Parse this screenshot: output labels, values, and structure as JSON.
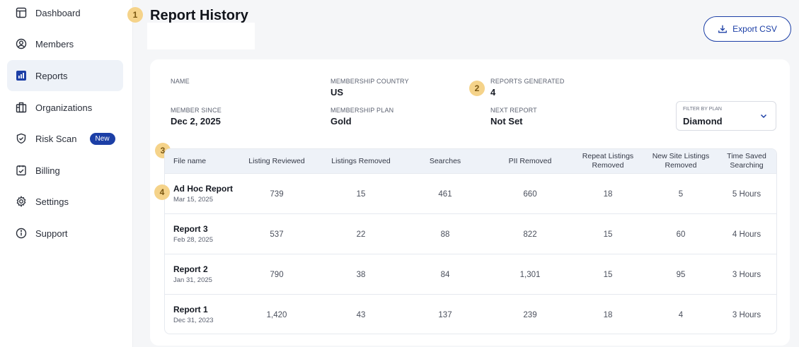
{
  "sidebar": {
    "items": [
      {
        "label": "Dashboard",
        "icon": "dashboard-icon"
      },
      {
        "label": "Members",
        "icon": "user-circle-icon"
      },
      {
        "label": "Reports",
        "icon": "bar-chart-icon"
      },
      {
        "label": "Organizations",
        "icon": "building-icon"
      },
      {
        "label": "Risk Scan",
        "icon": "shield-check-icon",
        "badge": "New"
      },
      {
        "label": "Billing",
        "icon": "clipboard-check-icon"
      },
      {
        "label": "Settings",
        "icon": "gear-icon"
      },
      {
        "label": "Support",
        "icon": "info-icon"
      }
    ],
    "active": "Reports"
  },
  "header": {
    "title": "Report History",
    "export_label": "Export CSV"
  },
  "markers": [
    "1",
    "2",
    "3",
    "4"
  ],
  "member": {
    "name_label": "NAME",
    "country_label": "MEMBERSHIP COUNTRY",
    "country_value": "US",
    "reports_label": "REPORTS GENERATED",
    "reports_value": "4",
    "since_label": "MEMBER SINCE",
    "since_value": "Dec 2, 2025",
    "plan_label": "MEMBERSHIP PLAN",
    "plan_value": "Gold",
    "next_label": "NEXT REPORT",
    "next_value": "Not Set"
  },
  "filter": {
    "label": "FILTER BY PLAN",
    "value": "Diamond"
  },
  "table": {
    "headers": [
      "File name",
      "Listing Reviewed",
      "Listings Removed",
      "Searches",
      "PII Removed",
      "Repeat Listings Removed",
      "New Site Listings Removed",
      "Time Saved Searching"
    ],
    "rows": [
      {
        "name": "Ad Hoc Report",
        "date": "Mar 15, 2025",
        "reviewed": "739",
        "removed": "15",
        "searches": "461",
        "pii": "660",
        "repeat": "18",
        "new_site": "5",
        "time": "5 Hours"
      },
      {
        "name": "Report 3",
        "date": "Feb 28, 2025",
        "reviewed": "537",
        "removed": "22",
        "searches": "88",
        "pii": "822",
        "repeat": "15",
        "new_site": "60",
        "time": "4 Hours"
      },
      {
        "name": "Report 2",
        "date": "Jan 31, 2025",
        "reviewed": "790",
        "removed": "38",
        "searches": "84",
        "pii": "1,301",
        "repeat": "15",
        "new_site": "95",
        "time": "3 Hours"
      },
      {
        "name": "Report 1",
        "date": "Dec 31, 2023",
        "reviewed": "1,420",
        "removed": "43",
        "searches": "137",
        "pii": "239",
        "repeat": "18",
        "new_site": "4",
        "time": "3 Hours"
      }
    ]
  },
  "colors": {
    "accent": "#1c3fa6",
    "marker": "#f5d38a",
    "active_nav": "#eef2f8"
  }
}
